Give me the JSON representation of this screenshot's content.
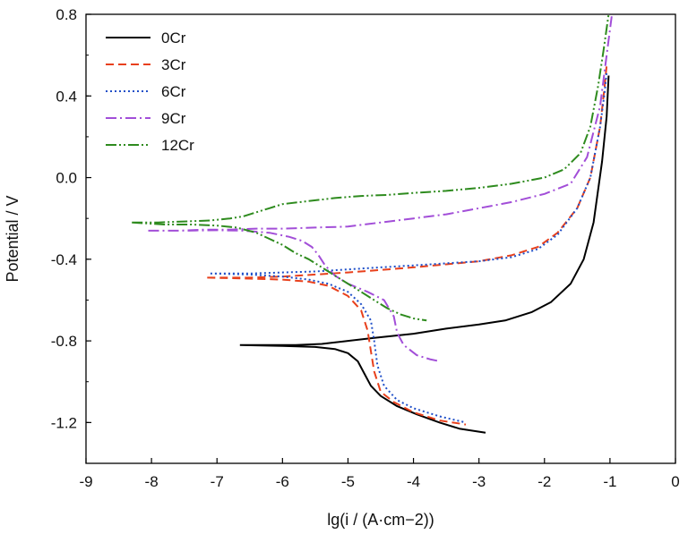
{
  "chart_data": {
    "type": "line",
    "xlabel": "lg(i / (A·cm−2))",
    "ylabel": "Potential / V",
    "xlim": [
      -9,
      0
    ],
    "ylim": [
      -1.4,
      0.8
    ],
    "xticks": [
      "-9",
      "-8",
      "-7",
      "-6",
      "-5",
      "-4",
      "-3",
      "-2",
      "-1",
      "0"
    ],
    "yticks": [
      "-1.2",
      "-0.8",
      "-0.4",
      "0.0",
      "0.4",
      "0.8"
    ],
    "legend_position": "top-left",
    "grid": false,
    "series": [
      {
        "name": "0Cr",
        "color": "#000000",
        "dash": "solid",
        "points": [
          [
            -6.65,
            -0.82
          ],
          [
            -6.2,
            -0.82
          ],
          [
            -5.8,
            -0.82
          ],
          [
            -5.4,
            -0.815
          ],
          [
            -5.0,
            -0.8
          ],
          [
            -4.6,
            -0.785
          ],
          [
            -4.0,
            -0.765
          ],
          [
            -3.5,
            -0.74
          ],
          [
            -3.0,
            -0.72
          ],
          [
            -2.6,
            -0.7
          ],
          [
            -2.2,
            -0.66
          ],
          [
            -1.9,
            -0.61
          ],
          [
            -1.6,
            -0.52
          ],
          [
            -1.4,
            -0.4
          ],
          [
            -1.25,
            -0.22
          ],
          [
            -1.12,
            0.08
          ],
          [
            -1.05,
            0.3
          ],
          [
            -1.02,
            0.5
          ],
          [
            null,
            null
          ],
          [
            -6.65,
            -0.82
          ],
          [
            -6.0,
            -0.825
          ],
          [
            -5.5,
            -0.83
          ],
          [
            -5.2,
            -0.84
          ],
          [
            -5.0,
            -0.86
          ],
          [
            -4.85,
            -0.9
          ],
          [
            -4.75,
            -0.96
          ],
          [
            -4.65,
            -1.02
          ],
          [
            -4.5,
            -1.07
          ],
          [
            -4.25,
            -1.12
          ],
          [
            -3.95,
            -1.16
          ],
          [
            -3.6,
            -1.2
          ],
          [
            -3.3,
            -1.23
          ],
          [
            -2.9,
            -1.25
          ]
        ]
      },
      {
        "name": "3Cr",
        "color": "#E8401C",
        "dash": "dashed",
        "points": [
          [
            -7.15,
            -0.49
          ],
          [
            -6.5,
            -0.49
          ],
          [
            -6.0,
            -0.485
          ],
          [
            -5.5,
            -0.475
          ],
          [
            -5.0,
            -0.465
          ],
          [
            -4.6,
            -0.455
          ],
          [
            -4.0,
            -0.44
          ],
          [
            -3.5,
            -0.425
          ],
          [
            -3.0,
            -0.41
          ],
          [
            -2.5,
            -0.38
          ],
          [
            -2.1,
            -0.34
          ],
          [
            -1.8,
            -0.27
          ],
          [
            -1.5,
            -0.15
          ],
          [
            -1.3,
            0.0
          ],
          [
            -1.15,
            0.25
          ],
          [
            -1.08,
            0.45
          ],
          [
            -1.05,
            0.55
          ],
          [
            null,
            null
          ],
          [
            -7.15,
            -0.49
          ],
          [
            -6.5,
            -0.495
          ],
          [
            -6.0,
            -0.5
          ],
          [
            -5.6,
            -0.51
          ],
          [
            -5.3,
            -0.53
          ],
          [
            -5.0,
            -0.58
          ],
          [
            -4.8,
            -0.65
          ],
          [
            -4.7,
            -0.75
          ],
          [
            -4.65,
            -0.85
          ],
          [
            -4.6,
            -0.95
          ],
          [
            -4.5,
            -1.05
          ],
          [
            -4.3,
            -1.1
          ],
          [
            -4.0,
            -1.15
          ],
          [
            -3.6,
            -1.19
          ],
          [
            -3.2,
            -1.21
          ]
        ]
      },
      {
        "name": "6Cr",
        "color": "#1F4FC8",
        "dash": "dotted",
        "points": [
          [
            -7.1,
            -0.47
          ],
          [
            -6.5,
            -0.47
          ],
          [
            -6.0,
            -0.465
          ],
          [
            -5.5,
            -0.46
          ],
          [
            -5.0,
            -0.45
          ],
          [
            -4.5,
            -0.44
          ],
          [
            -4.0,
            -0.43
          ],
          [
            -3.5,
            -0.42
          ],
          [
            -3.0,
            -0.41
          ],
          [
            -2.5,
            -0.39
          ],
          [
            -2.1,
            -0.35
          ],
          [
            -1.8,
            -0.28
          ],
          [
            -1.5,
            -0.15
          ],
          [
            -1.3,
            0.0
          ],
          [
            -1.15,
            0.25
          ],
          [
            -1.08,
            0.42
          ],
          [
            -1.05,
            0.52
          ],
          [
            null,
            null
          ],
          [
            -7.1,
            -0.47
          ],
          [
            -6.5,
            -0.475
          ],
          [
            -6.0,
            -0.485
          ],
          [
            -5.6,
            -0.5
          ],
          [
            -5.3,
            -0.52
          ],
          [
            -5.0,
            -0.56
          ],
          [
            -4.8,
            -0.62
          ],
          [
            -4.65,
            -0.7
          ],
          [
            -4.6,
            -0.8
          ],
          [
            -4.55,
            -0.92
          ],
          [
            -4.45,
            -1.02
          ],
          [
            -4.25,
            -1.09
          ],
          [
            -4.0,
            -1.13
          ],
          [
            -3.6,
            -1.17
          ],
          [
            -3.2,
            -1.2
          ]
        ]
      },
      {
        "name": "9Cr",
        "color": "#A24ED8",
        "dash": "dashdot",
        "points": [
          [
            -8.05,
            -0.26
          ],
          [
            -7.6,
            -0.26
          ],
          [
            -7.2,
            -0.255
          ],
          [
            -6.8,
            -0.255
          ],
          [
            -6.4,
            -0.25
          ],
          [
            -6.0,
            -0.25
          ],
          [
            -5.5,
            -0.245
          ],
          [
            -5.0,
            -0.24
          ],
          [
            -4.5,
            -0.22
          ],
          [
            -4.0,
            -0.2
          ],
          [
            -3.5,
            -0.18
          ],
          [
            -3.0,
            -0.15
          ],
          [
            -2.5,
            -0.12
          ],
          [
            -2.0,
            -0.08
          ],
          [
            -1.6,
            -0.03
          ],
          [
            -1.35,
            0.1
          ],
          [
            -1.15,
            0.35
          ],
          [
            -1.05,
            0.6
          ],
          [
            -0.97,
            0.8
          ],
          [
            null,
            null
          ],
          [
            -8.05,
            -0.26
          ],
          [
            -7.5,
            -0.26
          ],
          [
            -7.0,
            -0.258
          ],
          [
            -6.6,
            -0.26
          ],
          [
            -6.2,
            -0.27
          ],
          [
            -5.9,
            -0.29
          ],
          [
            -5.7,
            -0.31
          ],
          [
            -5.55,
            -0.34
          ],
          [
            -5.45,
            -0.38
          ],
          [
            -5.35,
            -0.43
          ],
          [
            -5.2,
            -0.48
          ],
          [
            -5.0,
            -0.52
          ],
          [
            -4.7,
            -0.56
          ],
          [
            -4.45,
            -0.6
          ],
          [
            -4.3,
            -0.68
          ],
          [
            -4.25,
            -0.76
          ],
          [
            -4.15,
            -0.82
          ],
          [
            -3.95,
            -0.87
          ],
          [
            -3.75,
            -0.89
          ],
          [
            -3.6,
            -0.9
          ]
        ]
      },
      {
        "name": "12Cr",
        "color": "#2E8B1E",
        "dash": "dashdotdot",
        "points": [
          [
            -8.3,
            -0.22
          ],
          [
            -7.9,
            -0.22
          ],
          [
            -7.5,
            -0.215
          ],
          [
            -7.1,
            -0.21
          ],
          [
            -6.8,
            -0.2
          ],
          [
            -6.6,
            -0.19
          ],
          [
            -6.4,
            -0.17
          ],
          [
            -6.2,
            -0.15
          ],
          [
            -6.0,
            -0.13
          ],
          [
            -5.6,
            -0.115
          ],
          [
            -5.2,
            -0.1
          ],
          [
            -4.8,
            -0.09
          ],
          [
            -4.4,
            -0.085
          ],
          [
            -4.0,
            -0.075
          ],
          [
            -3.5,
            -0.065
          ],
          [
            -3.0,
            -0.05
          ],
          [
            -2.5,
            -0.03
          ],
          [
            -2.0,
            0.0
          ],
          [
            -1.7,
            0.04
          ],
          [
            -1.45,
            0.12
          ],
          [
            -1.3,
            0.25
          ],
          [
            -1.18,
            0.45
          ],
          [
            -1.1,
            0.62
          ],
          [
            -1.02,
            0.8
          ],
          [
            null,
            null
          ],
          [
            -8.3,
            -0.22
          ],
          [
            -7.8,
            -0.23
          ],
          [
            -7.4,
            -0.23
          ],
          [
            -7.0,
            -0.235
          ],
          [
            -6.7,
            -0.245
          ],
          [
            -6.4,
            -0.27
          ],
          [
            -6.2,
            -0.3
          ],
          [
            -6.0,
            -0.33
          ],
          [
            -5.8,
            -0.37
          ],
          [
            -5.6,
            -0.4
          ],
          [
            -5.4,
            -0.44
          ],
          [
            -5.2,
            -0.48
          ],
          [
            -5.0,
            -0.52
          ],
          [
            -4.8,
            -0.56
          ],
          [
            -4.6,
            -0.6
          ],
          [
            -4.4,
            -0.64
          ],
          [
            -4.2,
            -0.67
          ],
          [
            -4.0,
            -0.69
          ],
          [
            -3.8,
            -0.7
          ]
        ]
      }
    ]
  }
}
